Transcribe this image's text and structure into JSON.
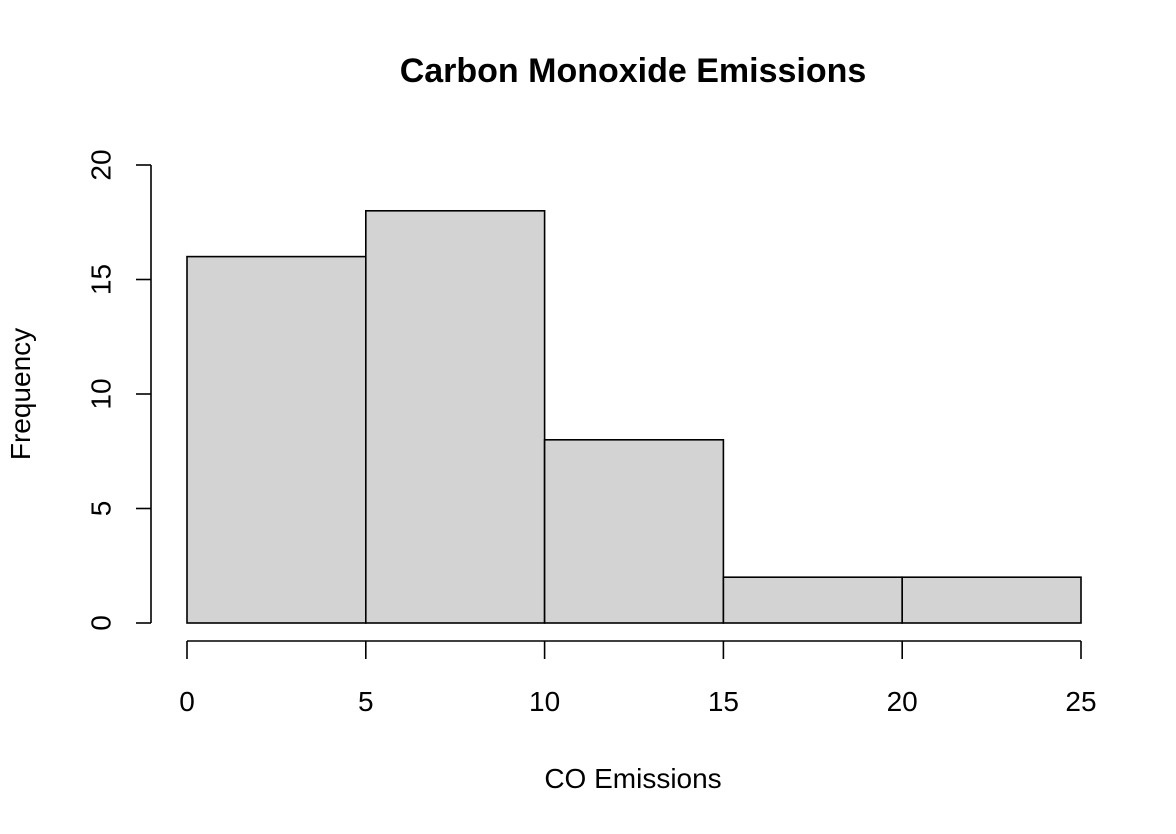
{
  "chart_data": {
    "type": "bar",
    "title": "Carbon Monoxide Emissions",
    "xlabel": "CO Emissions",
    "ylabel": "Frequency",
    "bins": [
      {
        "from": 0,
        "to": 5,
        "count": 16
      },
      {
        "from": 5,
        "to": 10,
        "count": 18
      },
      {
        "from": 10,
        "to": 15,
        "count": 8
      },
      {
        "from": 15,
        "to": 20,
        "count": 2
      },
      {
        "from": 20,
        "to": 25,
        "count": 2
      }
    ],
    "xlim": [
      0,
      25
    ],
    "ylim": [
      0,
      20
    ],
    "x_ticks": [
      "0",
      "5",
      "10",
      "15",
      "20",
      "25"
    ],
    "y_ticks": [
      "0",
      "5",
      "10",
      "15",
      "20"
    ],
    "bar_color": "#d3d3d3",
    "grid": false,
    "legend": "none"
  }
}
